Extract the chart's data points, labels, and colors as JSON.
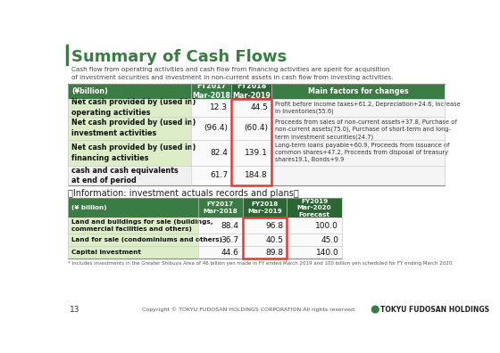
{
  "title": "Summary of Cash Flows",
  "subtitle": "Cash flow from operating activities and cash flow from financing activities are spent for acquisition\nof investment securities and investment in non-current assets in cash flow from investing activities.",
  "bg_color": "#ffffff",
  "title_color": "#3a7d44",
  "accent_bar_color": "#3a7d44",
  "header_green": "#3a7d44",
  "header_dark_green": "#2d6635",
  "header_text_color": "#ffffff",
  "row_label_bg": "#dcedc8",
  "last_row_bg": "#f5f5f5",
  "highlight_border_color": "#e53935",
  "notes_bg": "#f5f5f5",
  "data_bg": "#fafafa",
  "table1": {
    "headers": [
      "(¥billion)",
      "FY2017\nMar-2018",
      "FY2018\nMar-2019",
      "Main factors for changes"
    ],
    "rows": [
      {
        "label": "Net cash provided by (used in)\noperating activities",
        "fy2017": "12.3",
        "fy2018": "44.5",
        "notes": "Profit before income taxes+61.2, Depreciation+24.6, Increase\nin Inventories(55.6)"
      },
      {
        "label": "Net cash provided by (used in)\ninvestment activities",
        "fy2017": "(96.4)",
        "fy2018": "(60.4)",
        "notes": "Proceeds from sales of non-current assets+37.8, Purchase of\nnon-current assets(75.0), Purchase of short-term and long-\nterm investment securities(24.7)"
      },
      {
        "label": "Net cash provided by (used in)\nfinancing activities",
        "fy2017": "82.4",
        "fy2018": "139.1",
        "notes": "Long-term loans payable+60.9, Proceeds from issuance of\ncommon shares+47.2, Proceeds from disposal of treasury\nshares19.1, Bonds+9.9"
      },
      {
        "label": "cash and cash equivalents\nat end of period",
        "fy2017": "61.7",
        "fy2018": "184.8",
        "notes": ""
      }
    ]
  },
  "table2_title": "〈Information: investment actuals records and plans〉",
  "table2": {
    "headers": [
      "(¥ billion)",
      "FY2017\nMar-2018",
      "FY2018\nMar-2019",
      "FY2019\nMar-2020\nForecast"
    ],
    "rows": [
      {
        "label": "Land and buildings for sale (buildings,\ncommercial facilities and others)",
        "fy2017": "88.4",
        "fy2018": "96.8",
        "fy2019": "100.0"
      },
      {
        "label": "Land for sale (condominiums and others)",
        "fy2017": "36.7",
        "fy2018": "40.5",
        "fy2019": "45.0"
      },
      {
        "label": "Capital investment",
        "fy2017": "44.6",
        "fy2018": "89.8",
        "fy2019": "140.0"
      }
    ]
  },
  "footnote": "* Includes investments in the Greater Shibuya Area of 46 billion yen made in FY ended March 2019 and 100 billion yen scheduled for FY ending March 2020.",
  "page_num": "13",
  "copyright": "Copyright © TOKYU FUDOSAN HOLDINGS CORPORATION All rights reserved.",
  "logo_text": "TOKYU FUDOSAN HOLDINGS"
}
